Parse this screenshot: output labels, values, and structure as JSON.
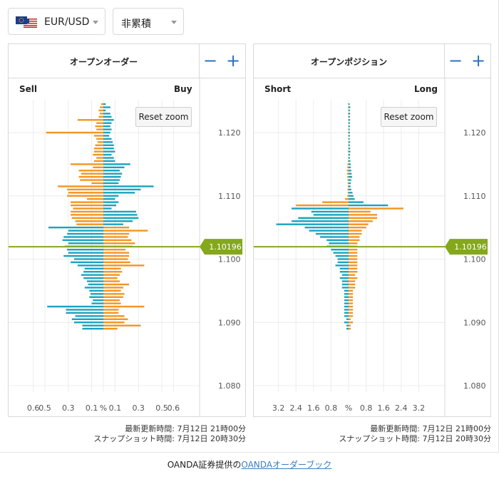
{
  "header": {
    "pair_label": "EUR/USD",
    "pair_flag_icon": "eu-us-flag-icon",
    "mode_label": "非累積"
  },
  "colors": {
    "blue": "#1aa3be",
    "orange": "#f39522",
    "marker": "#84a81c",
    "accent": "#2b6fc2"
  },
  "panels": {
    "orders": {
      "title": "オープンオーダー",
      "left": "Sell",
      "right": "Buy",
      "reset": "Reset zoom",
      "minus": "−",
      "plus": "+"
    },
    "positions": {
      "title": "オープンポジション",
      "left": "Short",
      "right": "Long",
      "reset": "Reset zoom",
      "minus": "−",
      "plus": "+"
    }
  },
  "footer": {
    "updated": "最新更新時間: 7月12日 21時00分",
    "snapshot": "スナップショット時間: 7月12日 20時30分"
  },
  "credit": {
    "prefix": "OANDA証券提供の",
    "link": "OANDAオーダーブック"
  },
  "chart_data": [
    {
      "type": "bar",
      "title": "オープンオーダー",
      "orientation": "horizontal-diverging",
      "price_ticks": [
        "1.120",
        "1.110",
        "1.100",
        "1.090",
        "1.080"
      ],
      "price_tick_values": [
        1.12,
        1.11,
        1.1,
        1.09,
        1.08
      ],
      "current_price": "1.10196",
      "xlim": [
        -0.75,
        0.75
      ],
      "x_ticks": [
        "0.6",
        "0.5",
        "0.3",
        "0.1",
        "%",
        "0.1",
        "0.3",
        "0.5",
        "0.6"
      ],
      "x_tick_values": [
        -0.6,
        -0.5,
        -0.3,
        -0.1,
        0,
        0.1,
        0.3,
        0.5,
        0.6
      ],
      "grid": true,
      "bin_top": 1.1245,
      "bin_size": 0.0005,
      "series": [
        {
          "name": "Sell",
          "values": [
            0.02,
            0.03,
            0.04,
            0.03,
            0.04,
            0.22,
            0.06,
            0.07,
            0.06,
            0.49,
            0.08,
            0.06,
            0.05,
            0.07,
            0.08,
            0.08,
            0.09,
            0.06,
            0.08,
            0.28,
            0.09,
            0.21,
            0.19,
            0.21,
            0.2,
            0.1,
            0.39,
            0.31,
            0.3,
            0.31,
            0.14,
            0.28,
            0.28,
            0.26,
            0.28,
            0.28,
            0.27,
            0.24,
            0.23,
            0.47,
            0.3,
            0.31,
            0.34,
            0.35,
            0.3,
            0.33,
            0.31,
            0.3,
            0.34,
            0.25,
            0.28,
            0.22,
            0.16,
            0.17,
            0.19,
            0.17,
            0.14,
            0.13,
            0.16,
            0.12,
            0.11,
            0.12,
            0.09,
            0.1,
            0.48,
            0.32,
            0.32,
            0.24,
            0.27,
            0.25,
            0.18,
            0.18
          ]
        },
        {
          "name": "Buy",
          "values": [
            0.02,
            0.06,
            0.02,
            0.06,
            0.07,
            0.09,
            0.07,
            0.06,
            0.07,
            0.06,
            0.05,
            0.07,
            0.08,
            0.09,
            0.09,
            0.1,
            0.07,
            0.09,
            0.1,
            0.23,
            0.18,
            0.14,
            0.16,
            0.15,
            0.14,
            0.13,
            0.43,
            0.32,
            0.27,
            0.13,
            0.1,
            0.13,
            0.11,
            0.07,
            0.28,
            0.29,
            0.3,
            0.25,
            0.17,
            0.22,
            0.38,
            0.22,
            0.21,
            0.24,
            0.27,
            0.25,
            0.19,
            0.22,
            0.22,
            0.21,
            0.23,
            0.35,
            0.15,
            0.16,
            0.14,
            0.12,
            0.14,
            0.22,
            0.17,
            0.15,
            0.18,
            0.17,
            0.14,
            0.15,
            0.35,
            0.13,
            0.13,
            0.18,
            0.21,
            0.18,
            0.32,
            0.12
          ]
        }
      ],
      "series_colors": {
        "Sell": "#f39522",
        "Buy": "#1aa3be"
      },
      "buy_side_switch_bin": 39
    },
    {
      "type": "bar",
      "title": "オープンポジション",
      "orientation": "horizontal-diverging",
      "price_ticks": [
        "1.120",
        "1.110",
        "1.100",
        "1.090",
        "1.080"
      ],
      "price_tick_values": [
        1.12,
        1.11,
        1.1,
        1.09,
        1.08
      ],
      "current_price": "1.10196",
      "xlim": [
        -4,
        4
      ],
      "x_ticks": [
        "3.2",
        "2.4",
        "1.6",
        "0.8",
        "%",
        "0.8",
        "1.6",
        "2.4",
        "3.2"
      ],
      "x_tick_values": [
        -3.2,
        -2.4,
        -1.6,
        -0.8,
        0,
        0.8,
        1.6,
        2.4,
        3.2
      ],
      "grid": true,
      "bin_top": 1.1245,
      "bin_size": 0.0005,
      "series": [
        {
          "name": "Short",
          "values": [
            0.02,
            0.03,
            0.02,
            0.03,
            0.02,
            0.02,
            0.02,
            0.02,
            0.02,
            0.03,
            0.02,
            0.02,
            0.02,
            0.02,
            0.02,
            0.03,
            0.02,
            0.02,
            0.03,
            0.05,
            0.06,
            0.08,
            0.07,
            0.06,
            0.05,
            0.04,
            0.04,
            0.05,
            0.04,
            0.06,
            0.16,
            1.2,
            2.4,
            2.6,
            1.7,
            1.6,
            2.3,
            2.6,
            3.3,
            2.0,
            1.8,
            1.5,
            1.3,
            1.0,
            0.9,
            1.0,
            0.8,
            0.7,
            0.6,
            0.5,
            0.5,
            0.6,
            0.4,
            0.4,
            0.3,
            0.4,
            0.3,
            0.3,
            0.3,
            0.2,
            0.2,
            0.2,
            0.2,
            0.2,
            0.2,
            0.2,
            0.2,
            0.2,
            0.1,
            0.2,
            0.1,
            0.1
          ]
        },
        {
          "name": "Long",
          "values": [
            0.05,
            0.08,
            0.06,
            0.07,
            0.06,
            0.07,
            0.06,
            0.06,
            0.05,
            0.06,
            0.06,
            0.05,
            0.07,
            0.06,
            0.07,
            0.08,
            0.07,
            0.06,
            0.08,
            0.1,
            0.1,
            0.12,
            0.14,
            0.16,
            0.12,
            0.1,
            0.09,
            0.12,
            0.18,
            0.22,
            0.28,
            0.68,
            1.8,
            2.5,
            1.0,
            1.3,
            1.3,
            1.1,
            0.9,
            0.8,
            0.6,
            0.6,
            0.5,
            0.5,
            0.4,
            0.4,
            0.4,
            0.4,
            0.4,
            0.4,
            0.4,
            0.4,
            0.4,
            0.4,
            0.3,
            0.4,
            0.3,
            0.3,
            0.3,
            0.2,
            0.2,
            0.2,
            0.2,
            0.2,
            0.2,
            0.2,
            0.2,
            0.2,
            0.1,
            0.2,
            0.1,
            0.1
          ]
        }
      ],
      "series_colors": {
        "Short": "#f39522",
        "Long": "#1aa3be"
      },
      "long_side_switch_bin": 33
    }
  ]
}
